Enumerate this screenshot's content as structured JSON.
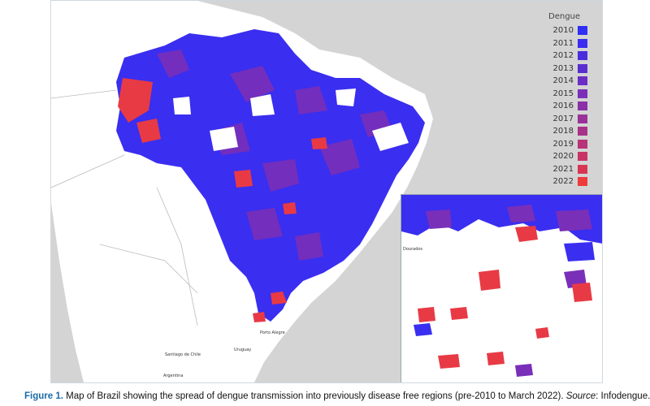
{
  "legend": {
    "title": "Dengue",
    "items": [
      {
        "year": "2010",
        "color": "#2e2ef5"
      },
      {
        "year": "2011",
        "color": "#3a2cf0"
      },
      {
        "year": "2012",
        "color": "#4a2ddc"
      },
      {
        "year": "2013",
        "color": "#5a2dd0"
      },
      {
        "year": "2014",
        "color": "#6a2ec4"
      },
      {
        "year": "2015",
        "color": "#7a2fb8"
      },
      {
        "year": "2016",
        "color": "#8a30a8"
      },
      {
        "year": "2017",
        "color": "#9a3198"
      },
      {
        "year": "2018",
        "color": "#a83288"
      },
      {
        "year": "2019",
        "color": "#b83378"
      },
      {
        "year": "2020",
        "color": "#c83466"
      },
      {
        "year": "2021",
        "color": "#d83552"
      },
      {
        "year": "2022",
        "color": "#ee3b3b"
      }
    ]
  },
  "map_labels": {
    "uruguay": "Uruguay",
    "argentina": "Argentina",
    "santiago": "Santiago de Chile",
    "porto_alegre": "Porto Alegre",
    "inset_label": "Dourados"
  },
  "caption": {
    "label": "Figure 1.",
    "text": " Map of Brazil showing the spread of dengue transmission into previously disease free regions (pre-2010 to March 2022). ",
    "source_label": "Source",
    "source_text": ": Infodengue."
  }
}
